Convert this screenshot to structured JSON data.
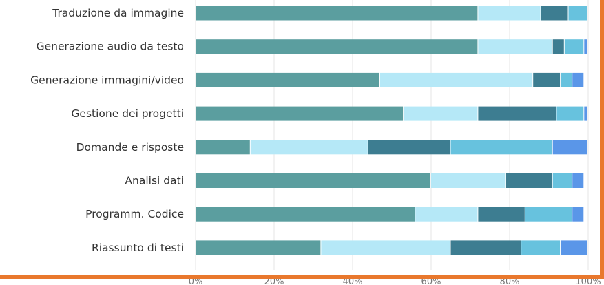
{
  "chart_data": {
    "type": "bar",
    "orientation": "horizontal",
    "stacked": true,
    "categories": [
      "Traduzione da immagine",
      "Generazione audio da testo",
      "Generazione immagini/video",
      "Gestione dei progetti",
      "Domande e risposte",
      "Analisi dati",
      "Programm. Codice",
      "Riassunto di testi"
    ],
    "series": [
      {
        "color": "#5B9E9F",
        "values": [
          72,
          72,
          47,
          53,
          14,
          60,
          56,
          32
        ]
      },
      {
        "color": "#B5E8F7",
        "values": [
          16,
          19,
          39,
          19,
          30,
          19,
          16,
          33
        ]
      },
      {
        "color": "#3D7D91",
        "values": [
          7,
          3,
          7,
          20,
          21,
          12,
          12,
          18
        ]
      },
      {
        "color": "#67C2DE",
        "values": [
          5,
          5,
          3,
          7,
          26,
          5,
          12,
          10
        ]
      },
      {
        "color": "#5A96E8",
        "values": [
          0,
          1,
          3,
          1,
          9,
          3,
          3,
          7
        ]
      }
    ],
    "x_ticks": [
      "0%",
      "20%",
      "40%",
      "60%",
      "80%",
      "100%"
    ],
    "xlim": [
      0,
      100
    ],
    "grid": true,
    "legend": "none",
    "frame_color": "#E9782D"
  }
}
